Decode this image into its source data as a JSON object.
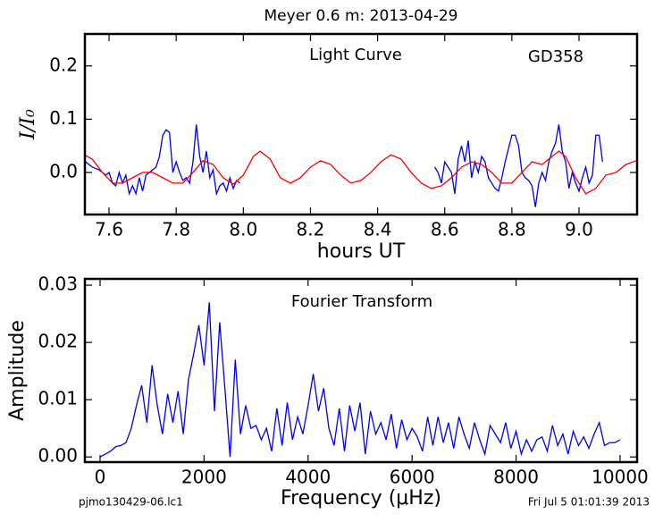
{
  "title": "Meyer 0.6 m:  2013-04-29",
  "footer_left": "pjmo130429-06.lc1",
  "footer_right": "Fri Jul  5 01:01:39 2013",
  "chart_data": [
    {
      "type": "line",
      "xlabel": "hours UT",
      "ylabel": "I/I₀",
      "annotations": [
        "Light Curve",
        "GD358"
      ],
      "xlim": [
        7.528,
        9.173
      ],
      "ylim": [
        -0.079,
        0.26
      ],
      "xticks": [
        7.6,
        7.8,
        {
          "value": 8,
          "label": "8.0"
        },
        8.2,
        8.4,
        8.6,
        8.8,
        {
          "value": 9,
          "label": "9.0"
        }
      ],
      "yticks": [
        {
          "value": 0,
          "label": "0.0"
        },
        0.1,
        0.2
      ],
      "series": [
        {
          "color": "#0000ee",
          "x": [
            7.53,
            7.55,
            7.57,
            7.59,
            7.6,
            7.61,
            7.62,
            7.63,
            7.64,
            7.65,
            7.66,
            7.67,
            7.68,
            7.69,
            7.7,
            7.71,
            7.72,
            7.74,
            7.75,
            7.76,
            7.77,
            7.78,
            7.79,
            7.8,
            7.81,
            7.82,
            7.83,
            7.84,
            7.85,
            7.86,
            7.87,
            7.88,
            7.89,
            7.9,
            7.91,
            7.92,
            7.93,
            7.94,
            7.95,
            7.96,
            7.97,
            7.98,
            7.99,
            8.3,
            8.57,
            8.58,
            8.59,
            8.6,
            8.61,
            8.62,
            8.63,
            8.64,
            8.65,
            8.66,
            8.67,
            8.68,
            8.69,
            8.7,
            8.71,
            8.72,
            8.73,
            8.74,
            8.75,
            8.76,
            8.77,
            8.78,
            8.79,
            8.8,
            8.81,
            8.82,
            8.83,
            8.84,
            8.85,
            8.86,
            8.87,
            8.88,
            8.89,
            8.9,
            8.91,
            8.92,
            8.93,
            8.94,
            8.95,
            8.96,
            8.97,
            8.98,
            8.99,
            9.0,
            9.01,
            9.02,
            9.03,
            9.04,
            9.05,
            9.06,
            9.07
          ],
          "values": [
            0.02,
            0.01,
            0.005,
            -0.005,
            0,
            -0.02,
            -0.025,
            0,
            -0.02,
            -0.005,
            -0.04,
            -0.025,
            -0.04,
            -0.01,
            -0.035,
            -0.005,
            0,
            0.01,
            0.03,
            0.07,
            0.08,
            0.075,
            0,
            0.02,
            0,
            -0.015,
            -0.01,
            -0.02,
            0.02,
            0.09,
            0.03,
            0,
            0.04,
            -0.01,
            0.005,
            -0.04,
            -0.025,
            -0.02,
            -0.035,
            -0.01,
            -0.03,
            -0.015,
            -0.02,
            null,
            0.01,
            0,
            -0.02,
            0.02,
            0.01,
            0,
            -0.04,
            0.025,
            0.05,
            0.02,
            0.06,
            -0.01,
            0.02,
            0,
            0.03,
            0.02,
            -0.01,
            -0.02,
            -0.03,
            -0.035,
            -0.01,
            0.02,
            0.045,
            0.07,
            0.07,
            0.05,
            0,
            -0.01,
            -0.015,
            -0.025,
            -0.065,
            -0.02,
            0,
            -0.015,
            0.02,
            0.04,
            0.055,
            0.09,
            0.04,
            0.02,
            -0.03,
            0,
            -0.02,
            -0.035,
            -0.01,
            0.01,
            -0.02,
            -0.005,
            0.07,
            0.07,
            0.02
          ]
        },
        {
          "color": "#ff0000",
          "x": [
            7.52,
            7.55,
            7.58,
            7.61,
            7.64,
            7.67,
            7.7,
            7.73,
            7.76,
            7.79,
            7.82,
            7.85,
            7.88,
            7.91,
            7.94,
            7.97,
            8.0,
            8.03,
            8.05,
            8.08,
            8.11,
            8.14,
            8.17,
            8.2,
            8.23,
            8.26,
            8.29,
            8.32,
            8.35,
            8.38,
            8.41,
            8.44,
            8.47,
            8.5,
            8.53,
            8.56,
            8.59,
            8.62,
            8.65,
            8.68,
            8.71,
            8.74,
            8.77,
            8.8,
            8.83,
            8.86,
            8.89,
            8.92,
            8.94,
            8.96,
            8.99,
            9.02,
            9.05,
            9.08,
            9.11,
            9.14,
            9.17
          ],
          "values": [
            0.035,
            0.025,
            0,
            -0.02,
            -0.02,
            -0.01,
            0,
            0,
            -0.01,
            -0.02,
            -0.02,
            0,
            0.022,
            0.015,
            -0.01,
            -0.022,
            -0.005,
            0.03,
            0.04,
            0.025,
            -0.01,
            -0.02,
            -0.01,
            0.01,
            0.022,
            0.015,
            -0.005,
            -0.02,
            -0.015,
            0,
            0.02,
            0.033,
            0.025,
            0,
            -0.02,
            -0.03,
            -0.025,
            -0.01,
            0.01,
            0.02,
            0.015,
            0,
            -0.02,
            -0.02,
            0,
            0.02,
            0.015,
            0.03,
            0.04,
            0.03,
            -0.01,
            -0.04,
            -0.03,
            -0.005,
            0,
            0.015,
            0.022
          ]
        }
      ]
    },
    {
      "type": "line",
      "xlabel": "Frequency (μHz)",
      "ylabel": "Amplitude",
      "annotations": [
        "Fourier Transform"
      ],
      "xlim": [
        -292,
        10327
      ],
      "ylim": [
        -0.0009,
        0.0311
      ],
      "xticks": [
        0,
        2000,
        4000,
        6000,
        8000,
        10000
      ],
      "yticks": [
        {
          "value": 0,
          "label": "0.00"
        },
        {
          "value": 0.01,
          "label": "0.01"
        },
        {
          "value": 0.02,
          "label": "0.02"
        },
        {
          "value": 0.03,
          "label": "0.03"
        }
      ],
      "series": [
        {
          "color": "#0000ee",
          "x": [
            0,
            100,
            200,
            300,
            400,
            500,
            600,
            700,
            800,
            900,
            1000,
            1100,
            1200,
            1300,
            1400,
            1500,
            1600,
            1700,
            1800,
            1900,
            2000,
            2100,
            2200,
            2300,
            2400,
            2500,
            2600,
            2700,
            2800,
            2900,
            3000,
            3100,
            3200,
            3300,
            3400,
            3500,
            3600,
            3700,
            3800,
            3900,
            4000,
            4100,
            4200,
            4300,
            4400,
            4500,
            4600,
            4700,
            4800,
            4900,
            5000,
            5100,
            5200,
            5300,
            5400,
            5500,
            5600,
            5700,
            5800,
            5900,
            6000,
            6100,
            6200,
            6300,
            6400,
            6500,
            6600,
            6700,
            6800,
            6900,
            7000,
            7100,
            7200,
            7300,
            7400,
            7500,
            7600,
            7700,
            7800,
            7900,
            8000,
            8100,
            8200,
            8300,
            8400,
            8500,
            8600,
            8700,
            8800,
            8900,
            9000,
            9100,
            9200,
            9300,
            9400,
            9500,
            9600,
            9700,
            9800,
            9900,
            10000
          ],
          "values": [
            0,
            0.0005,
            0.001,
            0.0018,
            0.002,
            0.0025,
            0.005,
            0.009,
            0.0125,
            0.006,
            0.016,
            0.009,
            0.004,
            0.011,
            0.006,
            0.0115,
            0.004,
            0.0135,
            0.018,
            0.023,
            0.016,
            0.027,
            0.008,
            0.0235,
            0.012,
            0,
            0.017,
            0.004,
            0.009,
            0.005,
            0.0055,
            0.003,
            0.005,
            0.001,
            0.0085,
            0.002,
            0.0095,
            0.003,
            0.007,
            0.004,
            0.009,
            0.0145,
            0.008,
            0.012,
            0.005,
            0.002,
            0.0085,
            0.001,
            0.009,
            0.0045,
            0.0095,
            0.0005,
            0.008,
            0.004,
            0.006,
            0.003,
            0.0075,
            0.0015,
            0.0065,
            0.003,
            0.005,
            0.0035,
            0.001,
            0.007,
            0.002,
            0.007,
            0.0025,
            0.006,
            0.0015,
            0.007,
            0.004,
            0.0015,
            0.006,
            0.003,
            0.0005,
            0.0055,
            0.004,
            0.0025,
            0.006,
            0.0015,
            0.0045,
            0.0005,
            0.003,
            0.001,
            0.003,
            0.0035,
            0.001,
            0.0055,
            0.002,
            0.004,
            0.0005,
            0.0045,
            0.002,
            0.0035,
            0.0015,
            0.004,
            0.006,
            0.002,
            0.0025,
            0.0025,
            0.003
          ]
        }
      ]
    }
  ]
}
